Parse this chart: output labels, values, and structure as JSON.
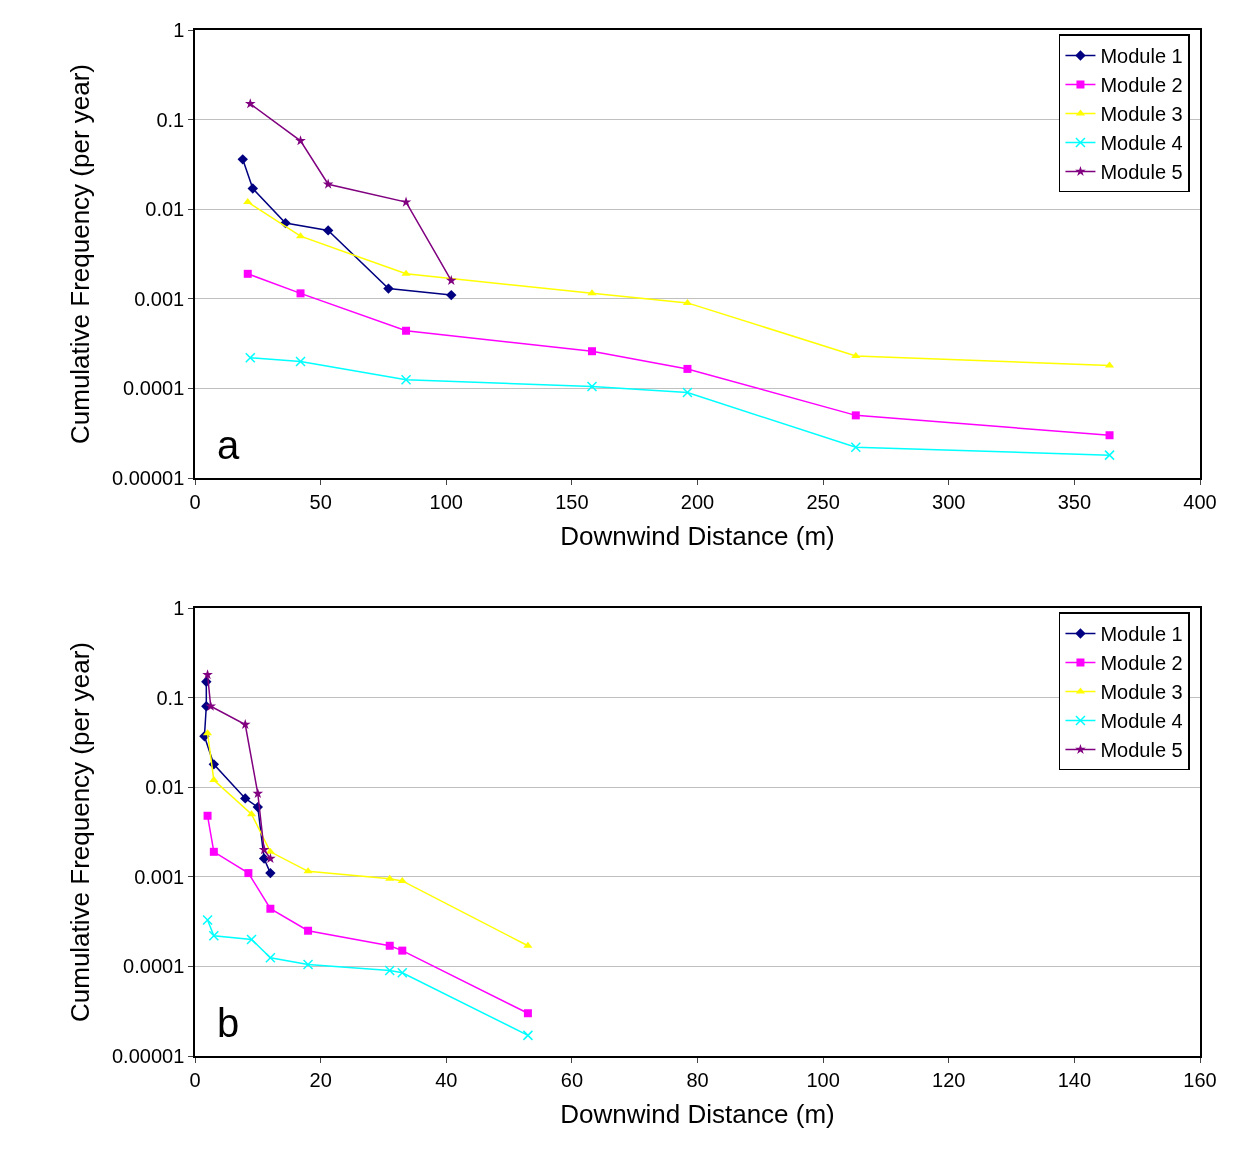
{
  "chart_data": [
    {
      "type": "line",
      "xlabel": "Downwind Distance (m)",
      "ylabel": "Cumulative Frequency (per year)",
      "annotations": [
        "a"
      ],
      "log": "y",
      "grid": "y",
      "legend": "top right",
      "xlim": [
        0,
        400
      ],
      "xticks": [
        0,
        50,
        100,
        150,
        200,
        250,
        300,
        350,
        400
      ],
      "ylim": [
        1e-05,
        1
      ],
      "yticks": [
        {
          "value": 1e-05,
          "label": "0.00001"
        },
        {
          "value": 0.0001,
          "label": "0.0001"
        },
        {
          "value": 0.001,
          "label": "0.001"
        },
        {
          "value": 0.01,
          "label": "0.01"
        },
        {
          "value": 0.1,
          "label": "0.1"
        },
        {
          "value": 1,
          "label": "1"
        }
      ],
      "series": [
        {
          "name": "Module 1",
          "color": "#000080",
          "marker": "diamond",
          "x": [
            19,
            23,
            36,
            53,
            77,
            102
          ],
          "values": [
            0.036,
            0.017,
            0.007,
            0.0058,
            0.0013,
            0.0011
          ]
        },
        {
          "name": "Module 2",
          "color": "#ff00ff",
          "marker": "square",
          "x": [
            21,
            42,
            84,
            158,
            196,
            263,
            364
          ],
          "values": [
            0.0019,
            0.00115,
            0.00044,
            0.00026,
            0.000165,
            5e-05,
            3e-05
          ]
        },
        {
          "name": "Module 3",
          "color": "#ffff00",
          "marker": "triangle",
          "x": [
            21,
            42,
            84,
            158,
            196,
            263,
            364
          ],
          "values": [
            0.012,
            0.005,
            0.0019,
            0.00115,
            0.0009,
            0.00023,
            0.00018
          ]
        },
        {
          "name": "Module 4",
          "color": "#00ffff",
          "marker": "cross",
          "x": [
            22,
            42,
            84,
            158,
            196,
            263,
            364
          ],
          "values": [
            0.00022,
            0.0002,
            0.000125,
            0.000105,
            9e-05,
            2.2e-05,
            1.8e-05
          ]
        },
        {
          "name": "Module 5",
          "color": "#800080",
          "marker": "star",
          "x": [
            22,
            42,
            53,
            84,
            102
          ],
          "values": [
            0.15,
            0.058,
            0.019,
            0.012,
            0.0016
          ]
        }
      ]
    },
    {
      "type": "line",
      "xlabel": "Downwind Distance (m)",
      "ylabel": "Cumulative Frequency (per year)",
      "annotations": [
        "b"
      ],
      "log": "y",
      "grid": "y",
      "legend": "top right",
      "xlim": [
        0,
        160
      ],
      "xticks": [
        0,
        20,
        40,
        60,
        80,
        100,
        120,
        140,
        160
      ],
      "ylim": [
        1e-05,
        1
      ],
      "yticks": [
        {
          "value": 1e-05,
          "label": "0.00001"
        },
        {
          "value": 0.0001,
          "label": "0.0001"
        },
        {
          "value": 0.001,
          "label": "0.001"
        },
        {
          "value": 0.01,
          "label": "0.01"
        },
        {
          "value": 0.1,
          "label": "0.1"
        },
        {
          "value": 1,
          "label": "1"
        }
      ],
      "series": [
        {
          "name": "Module 1",
          "color": "#000080",
          "marker": "diamond",
          "x": [
            1.8,
            1.8,
            1.5,
            3,
            8,
            10,
            11,
            12
          ],
          "values": [
            0.15,
            0.08,
            0.037,
            0.018,
            0.0075,
            0.006,
            0.0016,
            0.0011
          ]
        },
        {
          "name": "Module 2",
          "color": "#ff00ff",
          "marker": "square",
          "x": [
            2,
            3,
            8.5,
            12,
            18,
            31,
            33,
            53
          ],
          "values": [
            0.0048,
            0.0019,
            0.0011,
            0.00044,
            0.00025,
            0.00017,
            0.00015,
            3e-05
          ]
        },
        {
          "name": "Module 3",
          "color": "#ffff00",
          "marker": "triangle",
          "x": [
            2,
            3,
            9,
            12,
            18,
            31,
            33,
            53
          ],
          "values": [
            0.04,
            0.012,
            0.005,
            0.0019,
            0.00115,
            0.00095,
            0.0009,
            0.00017
          ]
        },
        {
          "name": "Module 4",
          "color": "#00ffff",
          "marker": "cross",
          "x": [
            2,
            3,
            9,
            12,
            18,
            31,
            33,
            53
          ],
          "values": [
            0.00033,
            0.00022,
            0.0002,
            0.000125,
            0.000105,
            9e-05,
            8.5e-05,
            1.7e-05
          ]
        },
        {
          "name": "Module 5",
          "color": "#800080",
          "marker": "star",
          "x": [
            2,
            2.5,
            8,
            10,
            11,
            12
          ],
          "values": [
            0.18,
            0.08,
            0.05,
            0.0085,
            0.002,
            0.0016
          ]
        }
      ]
    }
  ]
}
